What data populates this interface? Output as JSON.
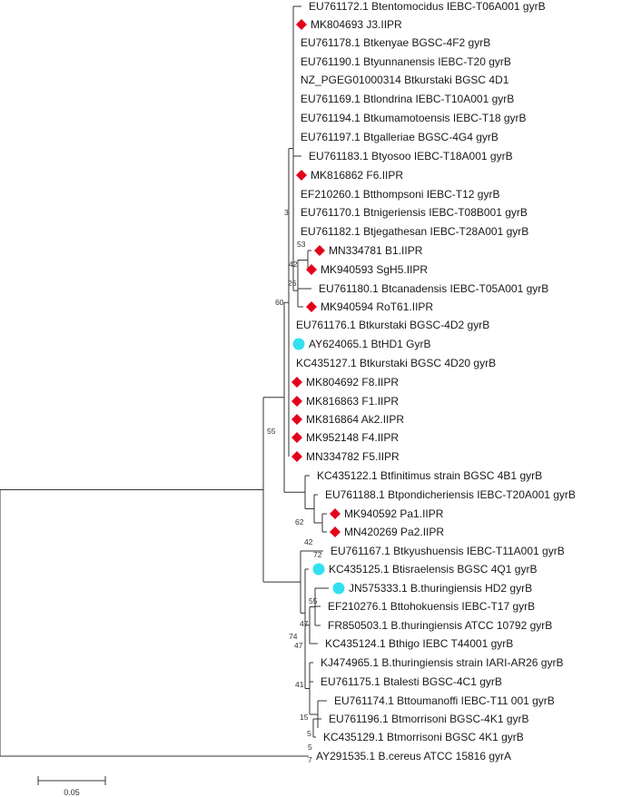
{
  "colors": {
    "line": "#333333",
    "text": "#1a1a1a",
    "diamond": "#e3001b",
    "circle": "#33e0f0",
    "background": "#ffffff"
  },
  "scale_bar": {
    "label": "0.05"
  },
  "tree": {
    "leaves": [
      {
        "id": "t01",
        "label": "EU761172.1 Btentomocidus IEBC-T06A001 gyrB",
        "marker": "none"
      },
      {
        "id": "t02",
        "label": "MK804693 J3.IIPR",
        "marker": "diamond"
      },
      {
        "id": "t03",
        "label": "EU761178.1 Btkenyae BGSC-4F2 gyrB",
        "marker": "none"
      },
      {
        "id": "t04",
        "label": "EU761190.1 Btyunnanensis IEBC-T20 gyrB",
        "marker": "none"
      },
      {
        "id": "t05",
        "label": "NZ_PGEG01000314 Btkurstaki BGSC 4D1",
        "marker": "none"
      },
      {
        "id": "t06",
        "label": "EU761169.1 Btlondrina IEBC-T10A001 gyrB",
        "marker": "none"
      },
      {
        "id": "t07",
        "label": "EU761194.1 Btkumamotoensis IEBC-T18 gyrB",
        "marker": "none"
      },
      {
        "id": "t08",
        "label": "EU761197.1 Btgalleriae BGSC-4G4 gyrB",
        "marker": "none"
      },
      {
        "id": "t09",
        "label": "EU761183.1 Btyosoo IEBC-T18A001 gyrB",
        "marker": "none"
      },
      {
        "id": "t10",
        "label": "MK816862 F6.IIPR",
        "marker": "diamond"
      },
      {
        "id": "t11",
        "label": "EF210260.1 Btthompsoni IEBC-T12 gyrB",
        "marker": "none"
      },
      {
        "id": "t12",
        "label": "EU761170.1 Btnigeriensis IEBC-T08B001 gyrB",
        "marker": "none"
      },
      {
        "id": "t13",
        "label": "EU761182.1 Btjegathesan IEBC-T28A001 gyrB",
        "marker": "none"
      },
      {
        "id": "t14",
        "label": "MN334781 B1.IIPR",
        "marker": "diamond"
      },
      {
        "id": "t15",
        "label": "MK940593 SgH5.IIPR",
        "marker": "diamond"
      },
      {
        "id": "t16",
        "label": "EU761180.1 Btcanadensis IEBC-T05A001 gyrB",
        "marker": "none"
      },
      {
        "id": "t17",
        "label": "MK940594 RoT61.IIPR",
        "marker": "diamond"
      },
      {
        "id": "t18",
        "label": "EU761176.1 Btkurstaki BGSC-4D2 gyrB",
        "marker": "none"
      },
      {
        "id": "t19",
        "label": "AY624065.1 BtHD1 GyrB",
        "marker": "circle"
      },
      {
        "id": "t20",
        "label": "KC435127.1 Btkurstaki BGSC 4D20 gyrB",
        "marker": "none"
      },
      {
        "id": "t21",
        "label": "MK804692 F8.IIPR",
        "marker": "diamond"
      },
      {
        "id": "t22",
        "label": "MK816863 F1.IIPR",
        "marker": "diamond"
      },
      {
        "id": "t23",
        "label": "MK816864 Ak2.IIPR",
        "marker": "diamond"
      },
      {
        "id": "t24",
        "label": "MK952148 F4.IIPR",
        "marker": "diamond"
      },
      {
        "id": "t25",
        "label": "MN334782 F5.IIPR",
        "marker": "diamond"
      },
      {
        "id": "t26",
        "label": "KC435122.1 Btfinitimus strain BGSC 4B1 gyrB",
        "marker": "none"
      },
      {
        "id": "t27",
        "label": "EU761188.1 Btpondicheriensis IEBC-T20A001 gyrB",
        "marker": "none"
      },
      {
        "id": "t28",
        "label": "MK940592 Pa1.IIPR",
        "marker": "diamond"
      },
      {
        "id": "t29",
        "label": "MN420269 Pa2.IIPR",
        "marker": "diamond"
      },
      {
        "id": "t30",
        "label": "EU761167.1 Btkyushuensis IEBC-T11A001 gyrB",
        "marker": "none"
      },
      {
        "id": "t31",
        "label": "KC435125.1 Btisraelensis BGSC 4Q1 gyrB",
        "marker": "circle"
      },
      {
        "id": "t32",
        "label": "JN575333.1 B.thuringiensis HD2 gyrB",
        "marker": "circle"
      },
      {
        "id": "t33",
        "label": "EF210276.1 Bttohokuensis IEBC-T17 gyrB",
        "marker": "none"
      },
      {
        "id": "t34",
        "label": "FR850503.1 B.thuringiensis  ATCC 10792 gyrB",
        "marker": "none"
      },
      {
        "id": "t35",
        "label": "KC435124.1 Bthigo IEBC T44001 gyrB",
        "marker": "none"
      },
      {
        "id": "t36",
        "label": "KJ474965.1 B.thuringiensis strain IARI-AR26 gyrB",
        "marker": "none"
      },
      {
        "id": "t37",
        "label": "EU761175.1 Btalesti BGSC-4C1 gyrB",
        "marker": "none"
      },
      {
        "id": "t38",
        "label": "EU761174.1 Bttoumanoffi IEBC-T11 001 gyrB",
        "marker": "none"
      },
      {
        "id": "t39",
        "label": "EU761196.1 Btmorrisoni BGSC-4K1 gyrB",
        "marker": "none"
      },
      {
        "id": "t40",
        "label": "KC435129.1 Btmorrisoni BGSC 4K1 gyrB",
        "marker": "none"
      },
      {
        "id": "t41",
        "label": "AY291535.1 B.cereus ATCC 15816 gyrA",
        "marker": "none"
      }
    ],
    "bootstrap": [
      {
        "node": "nA",
        "value": "3"
      },
      {
        "node": "nB",
        "value": "53"
      },
      {
        "node": "nC",
        "value": "42"
      },
      {
        "node": "nD",
        "value": "26"
      },
      {
        "node": "nE",
        "value": "60"
      },
      {
        "node": "nF",
        "value": "55"
      },
      {
        "node": "nG",
        "value": "62"
      },
      {
        "node": "nH",
        "value": "42"
      },
      {
        "node": "nI",
        "value": "72"
      },
      {
        "node": "nJ",
        "value": "74"
      },
      {
        "node": "nK",
        "value": "47"
      },
      {
        "node": "nL",
        "value": "47"
      },
      {
        "node": "nM",
        "value": "55"
      },
      {
        "node": "nN",
        "value": "41"
      },
      {
        "node": "nO",
        "value": "15"
      },
      {
        "node": "nP",
        "value": "5"
      },
      {
        "node": "nQ",
        "value": "5"
      },
      {
        "node": "nR",
        "value": "7"
      }
    ]
  }
}
